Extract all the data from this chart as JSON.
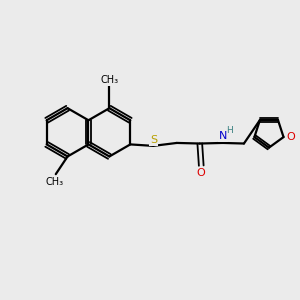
{
  "bg_color": "#ebebeb",
  "bond_color": "#000000",
  "N_color": "#0000cc",
  "S_color": "#b8a000",
  "O_color": "#dd0000",
  "H_color": "#3a8080",
  "figsize": [
    3.0,
    3.0
  ],
  "dpi": 100,
  "xlim": [
    0,
    10
  ],
  "ylim": [
    0,
    10
  ]
}
